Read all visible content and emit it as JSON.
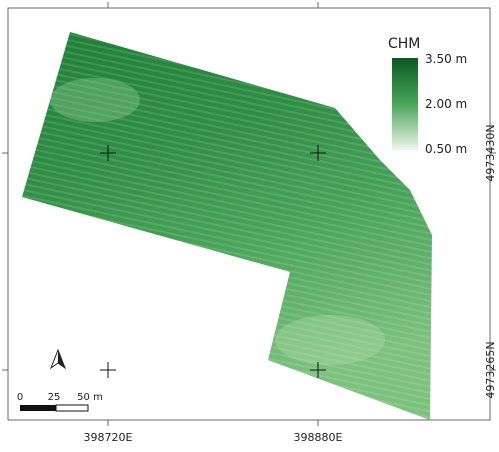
{
  "legend": {
    "title": "CHM",
    "labels": [
      "3.50 m",
      "2.00 m",
      "0.50 m"
    ]
  },
  "x_coords": [
    "398720E",
    "398880E"
  ],
  "y_coords": [
    "4973430N",
    "4973265N"
  ],
  "scale_bar": {
    "labels": [
      "0",
      "25",
      "50 m"
    ]
  }
}
